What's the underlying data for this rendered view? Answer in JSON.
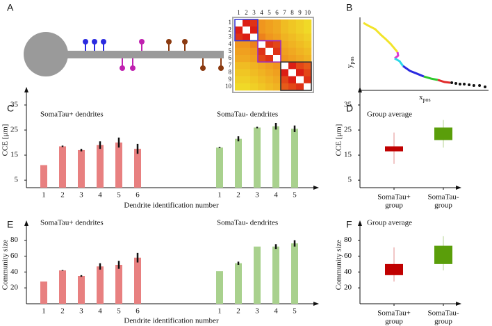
{
  "panel_labels": [
    "A",
    "B",
    "C",
    "D",
    "E",
    "F"
  ],
  "chart_data": [
    {
      "type": "heatmap",
      "labels": [
        1,
        2,
        3,
        4,
        5,
        6,
        7,
        8,
        9,
        10
      ],
      "values": [
        [
          null,
          0.9,
          0.85,
          0.6,
          0.55,
          0.5,
          0.4,
          0.35,
          0.3,
          0.25
        ],
        [
          0.9,
          null,
          0.9,
          0.6,
          0.55,
          0.5,
          0.4,
          0.35,
          0.3,
          0.25
        ],
        [
          0.85,
          0.9,
          null,
          0.65,
          0.6,
          0.55,
          0.45,
          0.4,
          0.35,
          0.3
        ],
        [
          0.6,
          0.6,
          0.65,
          null,
          0.85,
          0.8,
          0.5,
          0.45,
          0.4,
          0.35
        ],
        [
          0.55,
          0.55,
          0.6,
          0.85,
          null,
          0.85,
          0.55,
          0.5,
          0.45,
          0.4
        ],
        [
          0.5,
          0.5,
          0.55,
          0.8,
          0.85,
          null,
          0.6,
          0.55,
          0.5,
          0.45
        ],
        [
          0.4,
          0.4,
          0.45,
          0.5,
          0.55,
          0.6,
          null,
          0.9,
          0.8,
          0.75
        ],
        [
          0.35,
          0.35,
          0.4,
          0.45,
          0.5,
          0.55,
          0.9,
          null,
          0.9,
          0.8
        ],
        [
          0.3,
          0.3,
          0.35,
          0.4,
          0.45,
          0.5,
          0.8,
          0.9,
          null,
          0.85
        ],
        [
          0.25,
          0.25,
          0.3,
          0.35,
          0.4,
          0.45,
          0.75,
          0.8,
          0.85,
          null
        ]
      ],
      "clusters": [
        {
          "start": 1,
          "end": 3,
          "color": "#3b3bd6"
        },
        {
          "start": 4,
          "end": 6,
          "color": "#9b2fc4"
        },
        {
          "start": 7,
          "end": 10,
          "color": "#333333"
        }
      ]
    },
    {
      "type": "line",
      "xlabel": {
        "main": "x",
        "sub": "pos"
      },
      "ylabel": {
        "main": "y",
        "sub": "pos"
      },
      "xlim": [
        0,
        100
      ],
      "ylim": [
        0,
        100
      ],
      "series": [
        {
          "color": "#f2e42a",
          "marker": "line",
          "x": [
            2.7,
            6.5,
            11.9,
            16.2,
            20.5,
            23.8,
            27,
            29.2
          ],
          "y": [
            92.4,
            88.6,
            83.8,
            76.2,
            69.5,
            63.8,
            57.1,
            52.4
          ]
        },
        {
          "color": "#e03ad0",
          "marker": "line",
          "x": [
            29.2,
            29.7,
            27
          ],
          "y": [
            52.4,
            47.6,
            43.8
          ]
        },
        {
          "color": "#2ad8e8",
          "marker": "line",
          "x": [
            27,
            30.8,
            33.5
          ],
          "y": [
            43.8,
            40,
            33.3
          ]
        },
        {
          "color": "#2a2ae0",
          "marker": "line",
          "x": [
            33.5,
            38.9,
            44.3,
            49.7
          ],
          "y": [
            33.3,
            26.7,
            22.9,
            19
          ]
        },
        {
          "color": "#2ec82e",
          "marker": "line",
          "x": [
            49.7,
            55.1,
            60.5
          ],
          "y": [
            19,
            16.2,
            14.3
          ]
        },
        {
          "color": "#e02a2a",
          "marker": "line",
          "x": [
            60.5,
            65.9,
            70.3
          ],
          "y": [
            14.3,
            11.4,
            10.5
          ]
        },
        {
          "color": "#111111",
          "marker": "dots",
          "x": [
            71.4,
            74.6,
            77.8,
            81.1,
            84.9,
            88.6,
            93,
            97.3
          ],
          "y": [
            10.5,
            9.5,
            8.6,
            8.6,
            7.6,
            6.7,
            6.7,
            4.8
          ]
        }
      ]
    },
    {
      "type": "bar",
      "ylabel": "CCE [μm]",
      "xlabel": "Dendrite identification number",
      "ylim": [
        2,
        40
      ],
      "yticks": [
        5,
        15,
        25,
        35
      ],
      "groups": [
        {
          "title": "SomaTau+ dendrites",
          "color": "#e88080",
          "categories": [
            1,
            2,
            3,
            4,
            5,
            6
          ],
          "values": [
            11,
            18.5,
            17,
            19,
            20,
            17.5
          ],
          "errors": [
            0,
            0.3,
            0.5,
            1.5,
            2,
            2
          ]
        },
        {
          "title": "SomaTau- dendrites",
          "color": "#a9d18e",
          "categories": [
            1,
            2,
            3,
            4,
            5
          ],
          "values": [
            18,
            21.5,
            26,
            26.5,
            25.5
          ],
          "errors": [
            0.2,
            1,
            0.3,
            1.3,
            1.3
          ]
        }
      ]
    },
    {
      "type": "box",
      "title": "Group average",
      "ylabel": "CCE [μm]",
      "ylim": [
        2,
        40
      ],
      "yticks": [
        5,
        15,
        25,
        35
      ],
      "categories": [
        [
          "SomaTau+",
          "group"
        ],
        [
          "SomaTau-",
          "group"
        ]
      ],
      "boxes": [
        {
          "color": "#c00000",
          "q1": 16.5,
          "q3": 18.5,
          "whisker_low": 11.5,
          "whisker_high": 24
        },
        {
          "color": "#5a9e0a",
          "q1": 21,
          "q3": 26,
          "whisker_low": 18,
          "whisker_high": 29
        }
      ]
    },
    {
      "type": "bar",
      "ylabel": "Community size",
      "xlabel": "Dendrite identification number",
      "ylim": [
        0,
        98
      ],
      "yticks": [
        20,
        40,
        60,
        80
      ],
      "groups": [
        {
          "title": "SomaTau+ dendrites",
          "color": "#e88080",
          "categories": [
            1,
            2,
            3,
            4,
            5,
            6
          ],
          "values": [
            28,
            42,
            35,
            47,
            49,
            58
          ],
          "errors": [
            0,
            0.5,
            1,
            4,
            5,
            6
          ]
        },
        {
          "title": "SomaTau- dendrites",
          "color": "#a9d18e",
          "categories": [
            1,
            2,
            3,
            4,
            5
          ],
          "values": [
            41,
            51,
            72,
            72,
            76
          ],
          "errors": [
            0,
            2,
            0,
            3,
            4
          ]
        }
      ]
    },
    {
      "type": "box",
      "title": "Group average",
      "ylabel": "Community size",
      "ylim": [
        0,
        98
      ],
      "yticks": [
        20,
        40,
        60,
        80
      ],
      "categories": [
        [
          "SomaTau+",
          "group"
        ],
        [
          "SomaTau-",
          "group"
        ]
      ],
      "boxes": [
        {
          "color": "#c00000",
          "q1": 36,
          "q3": 50,
          "whisker_low": 28,
          "whisker_high": 71
        },
        {
          "color": "#5a9e0a",
          "q1": 50,
          "q3": 73,
          "whisker_low": 42,
          "whisker_high": 85
        }
      ]
    }
  ]
}
